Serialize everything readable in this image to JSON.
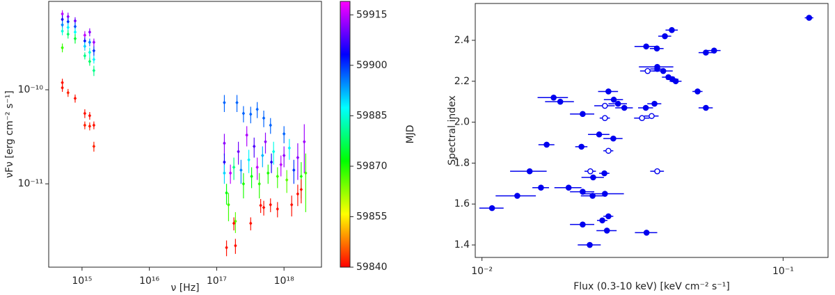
{
  "chart_data": [
    {
      "type": "scatter",
      "x_label": "ν [Hz]",
      "y_label": "νFν [erg cm⁻² s⁻¹]",
      "xscale": "log",
      "yscale": "log",
      "xlim": [
        320000000000000.0,
        3.6e+18
      ],
      "ylim": [
        1.3e-12,
        8.7e-10
      ],
      "xticks": [
        {
          "value": 1000000000000000.0,
          "label": "10¹⁵"
        },
        {
          "value": 1e+16,
          "label": "10¹⁶"
        },
        {
          "value": 1e+17,
          "label": "10¹⁷"
        },
        {
          "value": 1e+18,
          "label": "10¹⁸"
        }
      ],
      "yticks": [
        {
          "value": 1e-11,
          "label": "10⁻¹¹"
        },
        {
          "value": 1e-10,
          "label": "10⁻¹⁰"
        }
      ],
      "x": [
        510000000000000.0,
        510000000000000.0,
        620000000000000.0,
        790000000000000.0,
        1100000000000000.0,
        1100000000000000.0,
        1300000000000000.0,
        1300000000000000.0,
        1500000000000000.0,
        1500000000000000.0,
        510000000000000.0,
        510000000000000.0,
        510000000000000.0,
        510000000000000.0,
        510000000000000.0,
        620000000000000.0,
        620000000000000.0,
        620000000000000.0,
        620000000000000.0,
        790000000000000.0,
        790000000000000.0,
        790000000000000.0,
        790000000000000.0,
        1100000000000000.0,
        1100000000000000.0,
        1100000000000000.0,
        1100000000000000.0,
        1300000000000000.0,
        1300000000000000.0,
        1300000000000000.0,
        1300000000000000.0,
        1500000000000000.0,
        1500000000000000.0,
        1500000000000000.0,
        1500000000000000.0,
        1.3e+17,
        2e+17,
        2.5e+17,
        3.2e+17,
        4e+17,
        5e+17,
        6.3e+17,
        1e+18,
        1.3e+17,
        1.3e+17,
        1.3e+17,
        1.4e+17,
        1.5e+17,
        1.6e+17,
        1.8e+17,
        1.9e+17,
        2.1e+17,
        2.3e+17,
        2.5e+17,
        2.8e+17,
        3e+17,
        3.3e+17,
        3.6e+17,
        4e+17,
        4.3e+17,
        4.8e+17,
        5.3e+17,
        5.8e+17,
        6.5e+17,
        7e+17,
        8e+17,
        9e+17,
        1e+18,
        1.1e+18,
        1.2e+18,
        1.4e+18,
        1.6e+18,
        1.8e+18,
        2e+18,
        2.1e+18,
        1.4e+17,
        1.9e+17,
        1.8e+17,
        3.2e+17,
        4.5e+17,
        5e+17,
        6.3e+17,
        8e+17,
        1.3e+18,
        1.6e+18,
        1.8e+18
      ],
      "values": [
        1.19e-10,
        1.05e-10,
        9.3e-11,
        8.1e-11,
        5.6e-11,
        4.2e-11,
        5.3e-11,
        4.1e-11,
        4.2e-11,
        2.5e-11,
        6.4e-10,
        5.6e-10,
        4.9e-10,
        4.2e-10,
        2.8e-10,
        6e-10,
        5.3e-10,
        4.6e-10,
        3.9e-10,
        5.4e-10,
        4.7e-10,
        4.1e-10,
        3.5e-10,
        3.8e-10,
        3.3e-10,
        2.9e-10,
        2.3e-10,
        4.1e-10,
        3.2e-10,
        2.5e-10,
        2e-10,
        3.2e-10,
        2.6e-10,
        2.1e-10,
        1.6e-10,
        7.3e-11,
        7.3e-11,
        5.6e-11,
        5.5e-11,
        6.2e-11,
        5e-11,
        4.2e-11,
        3.4e-11,
        2.7e-11,
        1.7e-11,
        1.3e-11,
        8e-12,
        6e-12,
        1.3e-11,
        1.5e-11,
        4e-12,
        2.2e-11,
        1.4e-11,
        1e-11,
        3.3e-11,
        1.8e-11,
        1.2e-11,
        2.5e-11,
        1.5e-11,
        1e-11,
        2e-11,
        2.8e-11,
        1.3e-11,
        1.7e-11,
        2.2e-11,
        1.2e-11,
        1.6e-11,
        2e-11,
        1.1e-11,
        2.4e-11,
        1.4e-11,
        1.9e-11,
        1.2e-11,
        2.8e-11,
        1.3e-11,
        2.1e-12,
        2.2e-12,
        3.8e-12,
        3.8e-12,
        5.9e-12,
        5.6e-12,
        6e-12,
        5.4e-12,
        6e-12,
        7.8e-12,
        8.7e-12
      ],
      "errors": [
        1.2e-11,
        1e-11,
        9e-12,
        8e-12,
        6e-12,
        4e-12,
        5e-12,
        4e-12,
        4e-12,
        3e-12,
        6e-11,
        6e-11,
        5e-11,
        4e-11,
        3e-11,
        6e-11,
        5e-11,
        5e-11,
        4e-11,
        5e-11,
        5e-11,
        4e-11,
        4e-11,
        4e-11,
        3e-11,
        3e-11,
        2e-11,
        4e-11,
        3e-11,
        3e-11,
        2e-11,
        3e-11,
        3e-11,
        2e-11,
        2e-11,
        1.5e-11,
        1.5e-11,
        1.1e-11,
        1.1e-11,
        1.2e-11,
        1e-11,
        8e-12,
        7e-12,
        7e-12,
        4e-12,
        3e-12,
        2e-12,
        2e-12,
        3e-12,
        4e-12,
        1e-12,
        6e-12,
        4e-12,
        3e-12,
        8e-12,
        5e-12,
        3e-12,
        6e-12,
        4e-12,
        3e-12,
        5e-12,
        7e-12,
        3e-12,
        4e-12,
        6e-12,
        3e-12,
        4e-12,
        5e-12,
        3e-12,
        6e-12,
        4e-12,
        8e-12,
        5e-12,
        1.5e-11,
        8e-12,
        4e-13,
        4e-13,
        6e-13,
        6e-13,
        1e-12,
        1e-12,
        1e-12,
        1e-12,
        1.5e-12,
        2e-12,
        2.5e-12
      ],
      "mjd": [
        59841,
        59841,
        59842,
        59841,
        59841,
        59842,
        59841,
        59842,
        59841,
        59842,
        59915,
        59905,
        59895,
        59885,
        59868,
        59912,
        59900,
        59888,
        59878,
        59910,
        59898,
        59887,
        59875,
        59915,
        59902,
        59890,
        59880,
        59912,
        59895,
        59885,
        59878,
        59913,
        59900,
        59888,
        59880,
        59897,
        59897,
        59897,
        59897,
        59897,
        59897,
        59897,
        59897,
        59912,
        59905,
        59890,
        59872,
        59868,
        59915,
        59880,
        59866,
        59910,
        59895,
        59870,
        59914,
        59888,
        59872,
        59908,
        59915,
        59869,
        59892,
        59912,
        59870,
        59905,
        59886,
        59868,
        59915,
        59912,
        59866,
        59888,
        59900,
        59912,
        59870,
        59913,
        59868,
        59841,
        59841,
        59841,
        59841,
        59841,
        59841,
        59841,
        59841,
        59841,
        59841,
        59841
      ],
      "colorbar": {
        "label": "MJD",
        "lim": [
          59840,
          59919
        ],
        "ticks": [
          59840,
          59855,
          59870,
          59885,
          59900,
          59915
        ],
        "colormap": [
          "#ff0000",
          "#ffff00",
          "#00ff00",
          "#00ffff",
          "#0000ff",
          "#ff00ff"
        ]
      }
    },
    {
      "type": "scatter",
      "x_label": "Flux (0.3-10 keV) [keV cm⁻² s⁻¹]",
      "y_label": "Spectral index",
      "xscale": "log",
      "xlim": [
        0.0095,
        0.141
      ],
      "ylim": [
        1.339,
        2.58
      ],
      "xticks": [
        {
          "value": 0.01,
          "label": "10⁻²"
        },
        {
          "value": 0.1,
          "label": "10⁻¹"
        }
      ],
      "yticks": [
        1.4,
        1.6,
        1.8,
        {
          "value": 2,
          "label": "2.0"
        },
        2.2,
        2.4
      ],
      "series": [
        {
          "color": "#0000ee",
          "marker": "filled",
          "x": [
            0.122,
            0.0427,
            0.0405,
            0.0351,
            0.0381,
            0.059,
            0.0554,
            0.0382,
            0.0382,
            0.04,
            0.0416,
            0.0429,
            0.044,
            0.052,
            0.0263,
            0.0554,
            0.0173,
            0.0182,
            0.0274,
            0.0283,
            0.0297,
            0.0374,
            0.035,
            0.0216,
            0.0245,
            0.0273,
            0.0164,
            0.0214,
            0.0255,
            0.0234,
            0.0144,
            0.0194,
            0.0157,
            0.0216,
            0.0256,
            0.0233,
            0.0131,
            0.0108,
            0.0263,
            0.0251,
            0.0216,
            0.026,
            0.0352,
            0.0228
          ],
          "values": [
            2.51,
            2.45,
            2.42,
            2.37,
            2.36,
            2.35,
            2.34,
            2.27,
            2.26,
            2.25,
            2.22,
            2.21,
            2.2,
            2.15,
            2.15,
            2.07,
            2.12,
            2.1,
            2.11,
            2.09,
            2.07,
            2.09,
            2.07,
            2.04,
            1.94,
            1.92,
            1.89,
            1.88,
            1.75,
            1.73,
            1.76,
            1.68,
            1.68,
            1.66,
            1.65,
            1.64,
            1.64,
            1.58,
            1.54,
            1.52,
            1.5,
            1.47,
            1.46,
            1.4
          ],
          "xerr": [
            0.004,
            0.002,
            0.002,
            0.003,
            0.002,
            0.003,
            0.003,
            0.005,
            0.002,
            0.003,
            0.002,
            0.002,
            0.002,
            0.002,
            0.002,
            0.003,
            0.002,
            0.002,
            0.002,
            0.002,
            0.002,
            0.002,
            0.002,
            0.002,
            0.002,
            0.002,
            0.001,
            0.001,
            0.001,
            0.002,
            0.002,
            0.002,
            0.001,
            0.002,
            0.004,
            0.002,
            0.002,
            0.001,
            0.001,
            0.001,
            0.002,
            0.002,
            0.003,
            0.002
          ]
        },
        {
          "color": "#0000ee",
          "marker": "open",
          "x": [
            0.0355,
            0.0256,
            0.034,
            0.0366,
            0.0256,
            0.0263,
            0.0229,
            0.0382
          ],
          "values": [
            2.25,
            2.08,
            2.02,
            2.03,
            2.02,
            1.86,
            1.76,
            1.76
          ],
          "xerr": [
            0.002,
            0.002,
            0.002,
            0.002,
            0.001,
            0.001,
            0.001,
            0.002
          ]
        }
      ]
    }
  ]
}
